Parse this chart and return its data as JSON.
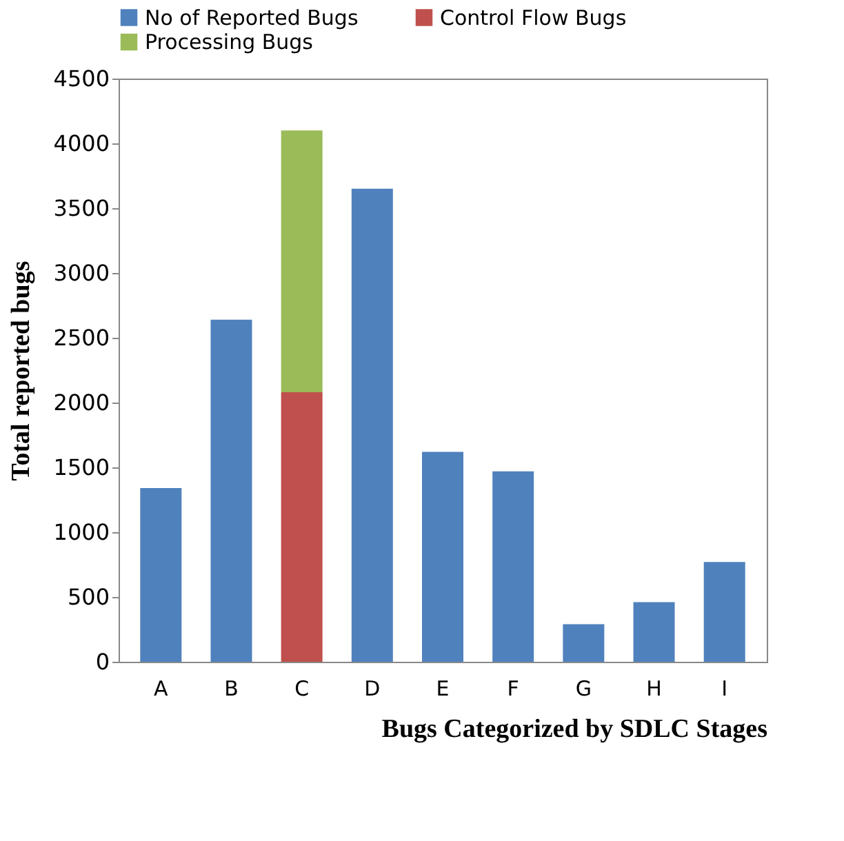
{
  "chart_data": {
    "type": "bar",
    "stacked": true,
    "xlabel": "Bugs Categorized by SDLC Stages",
    "ylabel": "Total reported bugs",
    "categories": [
      "A",
      "B",
      "C",
      "D",
      "E",
      "F",
      "G",
      "H",
      "I"
    ],
    "series": [
      {
        "name": "No of Reported Bugs",
        "color": "#4f81bd",
        "values": [
          1340,
          2640,
          null,
          3650,
          1620,
          1470,
          290,
          460,
          770
        ]
      },
      {
        "name": "Control Flow Bugs",
        "color": "#c0504d",
        "values": [
          null,
          null,
          2080,
          null,
          null,
          null,
          null,
          null,
          null
        ]
      },
      {
        "name": "Processing Bugs",
        "color": "#9bbb59",
        "values": [
          null,
          null,
          2020,
          null,
          null,
          null,
          null,
          null,
          null
        ]
      }
    ],
    "ylim": [
      0,
      4500
    ],
    "yticks": [
      0,
      500,
      1000,
      1500,
      2000,
      2500,
      3000,
      3500,
      4000,
      4500
    ],
    "grid": false,
    "legend": "top"
  }
}
